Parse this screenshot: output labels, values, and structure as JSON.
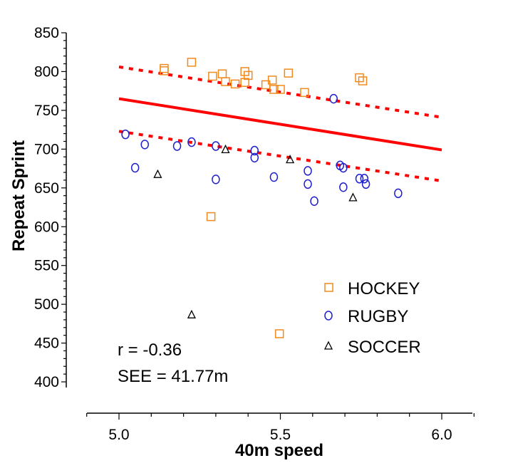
{
  "chart_data": {
    "type": "scatter",
    "title": "",
    "xlabel": "40m speed",
    "ylabel": "Repeat Sprint",
    "xlim": [
      4.9,
      6.1
    ],
    "ylim": [
      400,
      850
    ],
    "xticks": [
      5.0,
      5.5,
      6.0
    ],
    "xtick_labels": [
      "5.0",
      "5.5",
      "6.0"
    ],
    "x_minor_step": 0.1,
    "yticks": [
      400,
      450,
      500,
      550,
      600,
      650,
      700,
      750,
      800,
      850
    ],
    "ytick_labels": [
      "400",
      "450",
      "500",
      "550",
      "600",
      "650",
      "700",
      "750",
      "800",
      "850"
    ],
    "y_minor_step": 10,
    "grid": false,
    "legend_position": "bottom-right",
    "series": [
      {
        "name": "HOCKEY",
        "marker": "square",
        "color": "#F08A1E",
        "x": [
          5.14,
          5.14,
          5.225,
          5.29,
          5.32,
          5.33,
          5.36,
          5.39,
          5.39,
          5.4,
          5.455,
          5.475,
          5.48,
          5.5,
          5.525,
          5.575,
          5.745,
          5.755,
          5.285,
          5.497
        ],
        "y": [
          804,
          801,
          812,
          794,
          797,
          787,
          784,
          800,
          786,
          795,
          783,
          789,
          777,
          777,
          798,
          773,
          792,
          788,
          613,
          462
        ]
      },
      {
        "name": "RUGBY",
        "marker": "circle",
        "color": "#1F1FD0",
        "x": [
          5.02,
          5.08,
          5.05,
          5.18,
          5.225,
          5.3,
          5.3,
          5.42,
          5.42,
          5.48,
          5.585,
          5.585,
          5.605,
          5.665,
          5.685,
          5.695,
          5.695,
          5.745,
          5.76,
          5.765,
          5.865
        ],
        "y": [
          719,
          706,
          676,
          704,
          709,
          704,
          661,
          698,
          689,
          664,
          672,
          655,
          633,
          765,
          679,
          676,
          651,
          662,
          662,
          655,
          643
        ]
      },
      {
        "name": "SOCCER",
        "marker": "triangle",
        "color": "#000000",
        "x": [
          5.12,
          5.33,
          5.53,
          5.725,
          5.225
        ],
        "y": [
          668,
          700,
          687,
          638,
          487
        ]
      }
    ],
    "lines": [
      {
        "name": "regression",
        "style": "solid",
        "color": "#FF0000",
        "x": [
          5.0,
          6.0
        ],
        "y": [
          765,
          699
        ]
      },
      {
        "name": "upper-see",
        "style": "dashed",
        "color": "#FF0000",
        "x": [
          5.0,
          6.0
        ],
        "y": [
          806,
          741
        ]
      },
      {
        "name": "lower-see",
        "style": "dashed",
        "color": "#FF0000",
        "x": [
          5.0,
          6.0
        ],
        "y": [
          723,
          659
        ]
      }
    ],
    "annotations": [
      "r = -0.36",
      "SEE = 41.77m"
    ]
  }
}
